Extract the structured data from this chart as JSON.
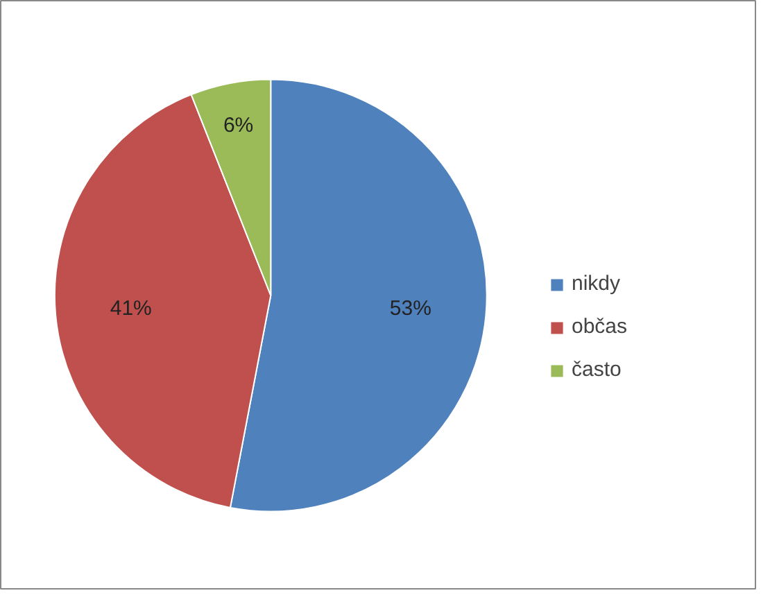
{
  "chart_data": {
    "type": "pie",
    "categories": [
      "nikdy",
      "občas",
      "často"
    ],
    "values": [
      53,
      41,
      6
    ],
    "colors": [
      "#4f81bd",
      "#c0504d",
      "#9bbb59"
    ],
    "value_labels": [
      "53%",
      "41%",
      "6%"
    ],
    "legend": "right"
  }
}
